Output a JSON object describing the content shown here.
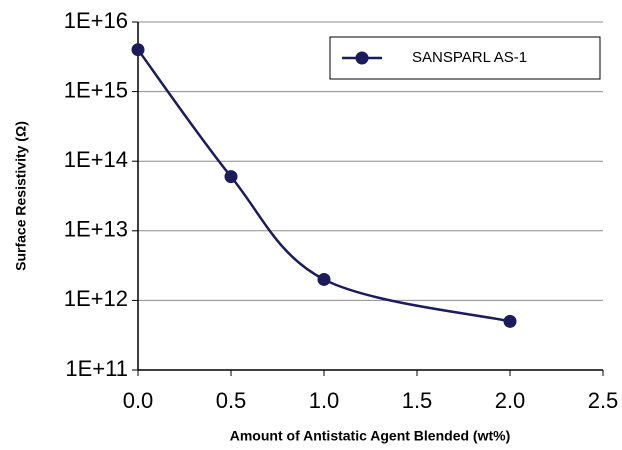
{
  "chart_data": {
    "type": "line",
    "x_label": "Amount of Antistatic Agent Blended (wt%)",
    "y_label": "Surface Resistivity (Ω)",
    "x": [
      0,
      0.5,
      1.0,
      2.0
    ],
    "series": [
      {
        "name": "SANSPARL AS-1",
        "color": "#1c1c5c",
        "values": [
          4000000000000000.0,
          60000000000000.0,
          2000000000000.0,
          500000000000.0
        ]
      }
    ],
    "xlim": [
      0,
      2.5
    ],
    "xticks": [
      {
        "value": 0,
        "label": "0.0"
      },
      0.5,
      {
        "value": 1,
        "label": "1.0"
      },
      1.5,
      {
        "value": 2,
        "label": "2.0"
      },
      2.5
    ],
    "ylim": [
      100000000000.0,
      1e+16
    ],
    "yticks": [
      {
        "value": 100000000000.0,
        "label": "1E+11"
      },
      {
        "value": 1000000000000.0,
        "label": "1E+12"
      },
      {
        "value": 10000000000000.0,
        "label": "1E+13"
      },
      {
        "value": 100000000000000.0,
        "label": "1E+14"
      },
      {
        "value": 1000000000000000.0,
        "label": "1E+15"
      },
      {
        "value": 1e+16,
        "label": "1E+16"
      }
    ],
    "y_log": true,
    "grid": true,
    "smooth": true,
    "legend": "upper right"
  }
}
